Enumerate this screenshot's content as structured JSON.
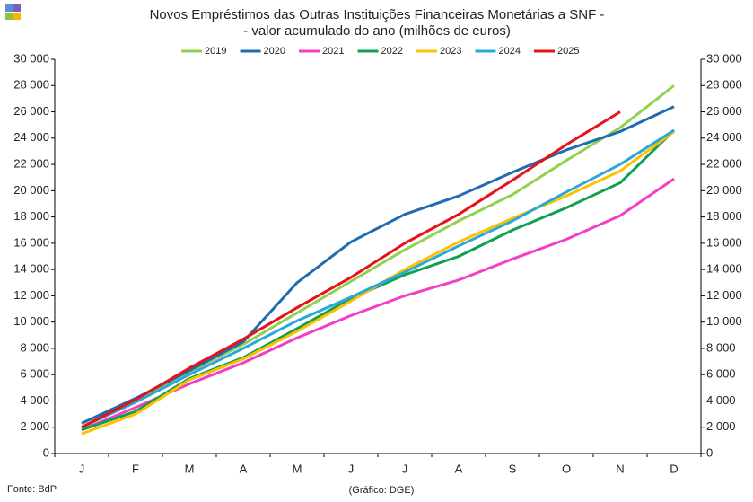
{
  "chart_data": {
    "type": "line",
    "title": [
      "Novos Empréstimos das Outras Instituições Financeiras Monetárias a SNF -",
      "- valor acumulado do ano (milhões de euros)"
    ],
    "source": "Fonte: BdP",
    "credit": "(Gráfico: DGE)",
    "categories": [
      "J",
      "F",
      "M",
      "A",
      "M",
      "J",
      "J",
      "A",
      "S",
      "O",
      "N",
      "D"
    ],
    "series": [
      {
        "name": "2019",
        "color": "#92d050",
        "values": [
          2000,
          4100,
          6200,
          8300,
          10700,
          13100,
          15500,
          17700,
          19700,
          22300,
          24800,
          28000
        ]
      },
      {
        "name": "2020",
        "color": "#1f6cb0",
        "values": [
          2300,
          4200,
          6300,
          8500,
          13000,
          16100,
          18200,
          19600,
          21400,
          23100,
          24500,
          26400
        ]
      },
      {
        "name": "2021",
        "color": "#f23fc4",
        "values": [
          1800,
          3500,
          5300,
          6900,
          8800,
          10500,
          12000,
          13200,
          14800,
          16300,
          18100,
          20900
        ]
      },
      {
        "name": "2022",
        "color": "#0fa050",
        "values": [
          1800,
          3200,
          5700,
          7300,
          9500,
          11800,
          13600,
          15000,
          17000,
          18700,
          20600,
          24600
        ]
      },
      {
        "name": "2023",
        "color": "#ffc000",
        "values": [
          1500,
          3000,
          5600,
          7200,
          9300,
          11600,
          14000,
          16100,
          17900,
          19600,
          21500,
          24500
        ]
      },
      {
        "name": "2024",
        "color": "#2aa8dc",
        "values": [
          2000,
          3900,
          6000,
          8000,
          10100,
          11900,
          13800,
          15800,
          17700,
          19900,
          22000,
          24600
        ]
      },
      {
        "name": "2025",
        "color": "#e8101a",
        "values": [
          2000,
          4100,
          6500,
          8700,
          11100,
          13400,
          16000,
          18200,
          20800,
          23500,
          26000,
          null
        ]
      }
    ],
    "ylim": [
      0,
      30000
    ],
    "yticks": [
      0,
      {
        "value": 2000,
        "label": "2 000"
      },
      {
        "value": 4000,
        "label": "4 000"
      },
      {
        "value": 6000,
        "label": "6 000"
      },
      {
        "value": 8000,
        "label": "8 000"
      },
      {
        "value": 10000,
        "label": "10 000"
      },
      {
        "value": 12000,
        "label": "12 000"
      },
      {
        "value": 14000,
        "label": "14 000"
      },
      {
        "value": 16000,
        "label": "16 000"
      },
      {
        "value": 18000,
        "label": "18 000"
      },
      {
        "value": 20000,
        "label": "20 000"
      },
      {
        "value": 22000,
        "label": "22 000"
      },
      {
        "value": 24000,
        "label": "24 000"
      },
      {
        "value": 26000,
        "label": "26 000"
      },
      {
        "value": 28000,
        "label": "28 000"
      },
      {
        "value": 30000,
        "label": "30 000"
      }
    ],
    "y2lim": [
      0,
      30000
    ],
    "y2ticks": [
      0,
      {
        "value": 2000,
        "label": "2 000"
      },
      {
        "value": 4000,
        "label": "4 000"
      },
      {
        "value": 6000,
        "label": "6 000"
      },
      {
        "value": 8000,
        "label": "8 000"
      },
      {
        "value": 10000,
        "label": "10 000"
      },
      {
        "value": 12000,
        "label": "12 000"
      },
      {
        "value": 14000,
        "label": "14 000"
      },
      {
        "value": 16000,
        "label": "16 000"
      },
      {
        "value": 18000,
        "label": "18 000"
      },
      {
        "value": 20000,
        "label": "20 000"
      },
      {
        "value": 22000,
        "label": "22 000"
      },
      {
        "value": 24000,
        "label": "24 000"
      },
      {
        "value": 26000,
        "label": "26 000"
      },
      {
        "value": 28000,
        "label": "28 000"
      },
      {
        "value": 30000,
        "label": "30 000"
      }
    ],
    "grid": false,
    "legend": "top"
  }
}
